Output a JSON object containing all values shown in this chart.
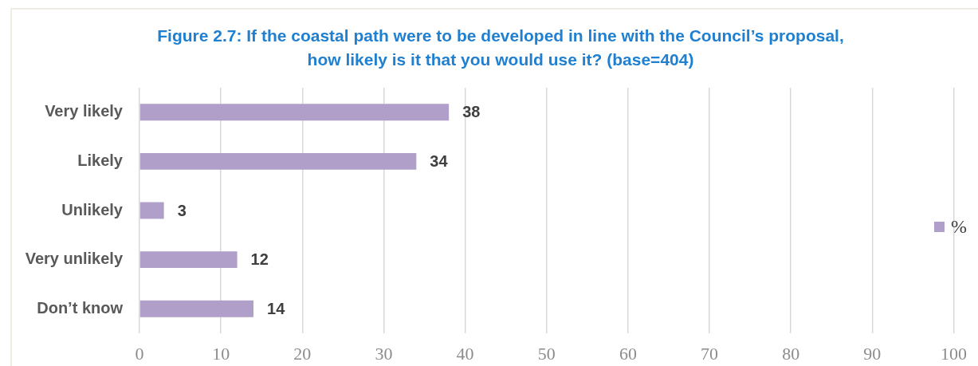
{
  "chart_data": {
    "type": "bar",
    "orientation": "horizontal",
    "title": "Figure 2.7: If the coastal path were to be developed in line with the Council’s proposal, how likely is it that you would use it? (base=404)",
    "categories": [
      "Very likely",
      "Likely",
      "Unlikely",
      "Very unlikely",
      "Don’t know"
    ],
    "series": [
      {
        "name": "%",
        "color": "#b09fc8",
        "values": [
          38,
          34,
          3,
          12,
          14
        ]
      }
    ],
    "xlim": [
      0,
      100
    ],
    "xticks": [
      0,
      10,
      20,
      30,
      40,
      50,
      60,
      70,
      80,
      90,
      100
    ],
    "grid": "x",
    "legend": "right",
    "data_labels": true
  }
}
